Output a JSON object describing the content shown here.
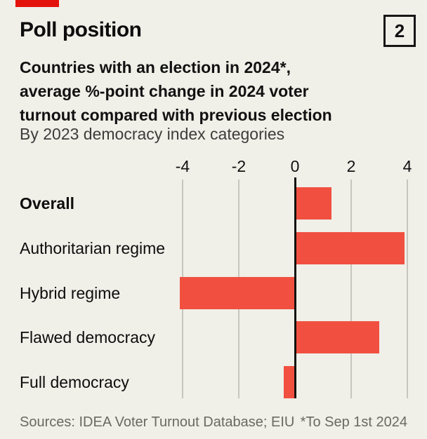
{
  "meta": {
    "background_color": "#f0efe8",
    "brand_tab_color": "#e3120b",
    "bar_color": "#f15040",
    "gridline_color": "#c8c6bc",
    "axis_color": "#12110e",
    "footer_text_color": "#6b695f"
  },
  "header": {
    "title": "Poll position",
    "index_label": "2"
  },
  "subtitle": {
    "lines_bold": [
      "Countries with an election in 2024*,",
      "average %-point change in 2024 voter",
      "turnout compared with previous election"
    ],
    "dek": "By 2023 democracy index categories"
  },
  "chart_data": {
    "type": "bar",
    "orientation": "horizontal",
    "title": "Poll position",
    "subtitle": "Countries with an election in 2024*, average %-point change in 2024 voter turnout compared with previous election",
    "group_note": "By 2023 democracy index categories",
    "categories": [
      "Overall",
      "Authoritarian regime",
      "Hybrid regime",
      "Flawed democracy",
      "Full democracy"
    ],
    "values": [
      1.3,
      3.9,
      -4.1,
      3.0,
      -0.4
    ],
    "label_bold": [
      true,
      false,
      false,
      false,
      false
    ],
    "ticks": [
      -4,
      -2,
      0,
      2,
      4
    ],
    "xlim": [
      -4.6,
      4.7
    ],
    "xlabel": "",
    "ylabel": "",
    "grid": true,
    "legend": false,
    "bar_color": "#f15040"
  },
  "footer": {
    "sources": "Sources: IDEA Voter Turnout Database; EIU",
    "note": "*To Sep 1st 2024"
  }
}
